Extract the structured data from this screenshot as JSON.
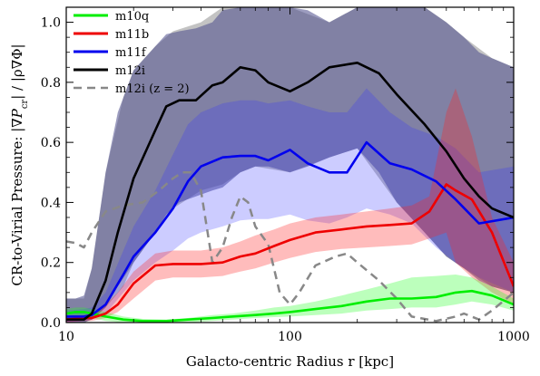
{
  "chart_data": {
    "type": "line",
    "title": "",
    "xlabel": "Galacto-centric Radius r [kpc]",
    "ylabel": "CR-to-Virial Pressure: |∇P_cr|/|ρ∇Φ|",
    "xscale": "log",
    "xlim": [
      10,
      1000
    ],
    "ylim": [
      0,
      1.05
    ],
    "xticks": [
      10,
      100,
      1000
    ],
    "xtick_labels": [
      "10",
      "100",
      "1000"
    ],
    "yticks": [
      0.0,
      0.2,
      0.4,
      0.6,
      0.8,
      1.0
    ],
    "ytick_labels": [
      "0.0",
      "0.2",
      "0.4",
      "0.6",
      "0.8",
      "1.0"
    ],
    "grid": false,
    "legend_position": "top-left",
    "series": [
      {
        "name": "m10q",
        "color": "#00ee00",
        "dash": "solid",
        "x": [
          10,
          11,
          12,
          13,
          15,
          18,
          22,
          28,
          35,
          45,
          55,
          70,
          85,
          100,
          130,
          170,
          220,
          280,
          350,
          450,
          550,
          650,
          800,
          1000
        ],
        "y": [
          0.03,
          0.035,
          0.035,
          0.03,
          0.02,
          0.01,
          0.005,
          0.005,
          0.01,
          0.015,
          0.02,
          0.025,
          0.03,
          0.035,
          0.045,
          0.055,
          0.07,
          0.08,
          0.08,
          0.085,
          0.1,
          0.105,
          0.09,
          0.06
        ],
        "band_low": [
          0.02,
          0.02,
          0.02,
          0.015,
          0.005,
          0.0,
          0.0,
          0.0,
          0.0,
          0.005,
          0.01,
          0.015,
          0.018,
          0.02,
          0.025,
          0.03,
          0.04,
          0.045,
          0.05,
          0.05,
          0.06,
          0.07,
          0.06,
          0.04
        ],
        "band_high": [
          0.045,
          0.05,
          0.05,
          0.045,
          0.035,
          0.02,
          0.012,
          0.01,
          0.015,
          0.025,
          0.03,
          0.04,
          0.05,
          0.055,
          0.07,
          0.09,
          0.11,
          0.13,
          0.15,
          0.155,
          0.16,
          0.15,
          0.12,
          0.08
        ]
      },
      {
        "name": "m11b",
        "color": "#ee0000",
        "dash": "solid",
        "x": [
          10,
          12,
          13,
          15,
          17,
          20,
          25,
          30,
          40,
          50,
          60,
          70,
          85,
          100,
          130,
          170,
          220,
          280,
          350,
          420,
          500,
          550,
          650,
          800,
          1000
        ],
        "y": [
          0.01,
          0.015,
          0.015,
          0.03,
          0.06,
          0.13,
          0.19,
          0.195,
          0.195,
          0.2,
          0.22,
          0.23,
          0.255,
          0.275,
          0.3,
          0.31,
          0.32,
          0.325,
          0.33,
          0.37,
          0.46,
          0.44,
          0.41,
          0.3,
          0.12
        ],
        "band_low": [
          0.0,
          0.005,
          0.005,
          0.015,
          0.035,
          0.08,
          0.14,
          0.15,
          0.15,
          0.155,
          0.17,
          0.18,
          0.2,
          0.215,
          0.235,
          0.245,
          0.25,
          0.255,
          0.26,
          0.28,
          0.3,
          0.2,
          0.15,
          0.1,
          0.06
        ],
        "band_high": [
          0.02,
          0.025,
          0.03,
          0.06,
          0.1,
          0.17,
          0.23,
          0.24,
          0.24,
          0.25,
          0.27,
          0.29,
          0.31,
          0.33,
          0.35,
          0.36,
          0.37,
          0.38,
          0.39,
          0.42,
          0.7,
          0.78,
          0.62,
          0.35,
          0.2
        ]
      },
      {
        "name": "m11f",
        "color": "#0000ee",
        "dash": "solid",
        "x": [
          10,
          12,
          13,
          15,
          18,
          20,
          25,
          30,
          35,
          40,
          50,
          60,
          70,
          80,
          100,
          120,
          150,
          180,
          220,
          280,
          350,
          450,
          550,
          700,
          1000
        ],
        "y": [
          0.02,
          0.02,
          0.025,
          0.06,
          0.16,
          0.22,
          0.3,
          0.38,
          0.47,
          0.52,
          0.55,
          0.555,
          0.555,
          0.54,
          0.575,
          0.53,
          0.5,
          0.5,
          0.6,
          0.53,
          0.51,
          0.47,
          0.41,
          0.33,
          0.35
        ],
        "band_low": [
          0.0,
          0.005,
          0.01,
          0.03,
          0.1,
          0.14,
          0.2,
          0.24,
          0.28,
          0.3,
          0.32,
          0.34,
          0.345,
          0.345,
          0.36,
          0.34,
          0.33,
          0.35,
          0.38,
          0.36,
          0.33,
          0.25,
          0.2,
          0.15,
          0.1
        ],
        "band_high": [
          0.04,
          0.045,
          0.05,
          0.1,
          0.24,
          0.32,
          0.44,
          0.56,
          0.66,
          0.7,
          0.73,
          0.74,
          0.74,
          0.73,
          0.74,
          0.72,
          0.7,
          0.7,
          0.78,
          0.7,
          0.65,
          0.62,
          0.58,
          0.5,
          0.52
        ]
      },
      {
        "name": "m12i",
        "color": "#000000",
        "dash": "solid",
        "x": [
          10,
          11,
          12,
          13,
          15,
          17,
          20,
          25,
          28,
          32,
          38,
          45,
          50,
          60,
          70,
          80,
          100,
          120,
          150,
          200,
          250,
          300,
          400,
          500,
          600,
          700,
          800,
          1000
        ],
        "y": [
          0.01,
          0.01,
          0.01,
          0.03,
          0.14,
          0.3,
          0.48,
          0.64,
          0.72,
          0.74,
          0.74,
          0.79,
          0.8,
          0.85,
          0.84,
          0.8,
          0.77,
          0.8,
          0.85,
          0.865,
          0.83,
          0.76,
          0.66,
          0.57,
          0.48,
          0.42,
          0.38,
          0.35
        ],
        "band_low": [
          0.0,
          0.0,
          0.0,
          0.01,
          0.05,
          0.12,
          0.2,
          0.3,
          0.36,
          0.4,
          0.42,
          0.44,
          0.45,
          0.5,
          0.52,
          0.52,
          0.5,
          0.52,
          0.55,
          0.58,
          0.5,
          0.4,
          0.3,
          0.22,
          0.18,
          0.14,
          0.12,
          0.1
        ],
        "band_high": [
          0.08,
          0.08,
          0.09,
          0.18,
          0.5,
          0.7,
          0.84,
          0.92,
          0.96,
          0.97,
          0.98,
          1.0,
          1.04,
          1.05,
          1.05,
          1.05,
          1.05,
          1.04,
          1.0,
          1.05,
          1.05,
          1.05,
          1.05,
          1.0,
          0.95,
          0.9,
          0.88,
          0.85
        ]
      },
      {
        "name": "m12i (z = 2)",
        "color": "#888888",
        "dash": "dashed",
        "x": [
          10,
          11,
          12,
          13,
          15,
          18,
          22,
          26,
          30,
          33,
          36,
          40,
          45,
          50,
          55,
          60,
          65,
          70,
          80,
          90,
          100,
          110,
          130,
          160,
          180,
          200,
          250,
          300,
          350,
          450,
          550,
          600,
          700,
          800,
          1000
        ],
        "y": [
          0.27,
          0.265,
          0.25,
          0.3,
          0.37,
          0.39,
          0.4,
          0.44,
          0.48,
          0.5,
          0.5,
          0.44,
          0.2,
          0.25,
          0.35,
          0.42,
          0.4,
          0.32,
          0.26,
          0.1,
          0.06,
          0.1,
          0.19,
          0.22,
          0.23,
          0.2,
          0.14,
          0.08,
          0.02,
          0.005,
          0.02,
          0.03,
          0.01,
          0.04,
          0.1
        ]
      }
    ],
    "gray_band": {
      "color": "#aaaaaa",
      "x": [
        10,
        12,
        13,
        15,
        18,
        20,
        25,
        30,
        40,
        50,
        60,
        70,
        100,
        150,
        200,
        300,
        400,
        500,
        600,
        800,
        1000
      ],
      "low": [
        0.0,
        0.0,
        0.01,
        0.05,
        0.12,
        0.2,
        0.3,
        0.38,
        0.44,
        0.46,
        0.5,
        0.52,
        0.5,
        0.55,
        0.58,
        0.4,
        0.3,
        0.22,
        0.18,
        0.12,
        0.1
      ],
      "high": [
        0.08,
        0.08,
        0.18,
        0.5,
        0.75,
        0.84,
        0.92,
        0.97,
        1.0,
        1.05,
        1.05,
        1.05,
        1.05,
        1.0,
        1.05,
        1.05,
        1.05,
        1.0,
        0.95,
        0.88,
        0.85
      ]
    }
  }
}
